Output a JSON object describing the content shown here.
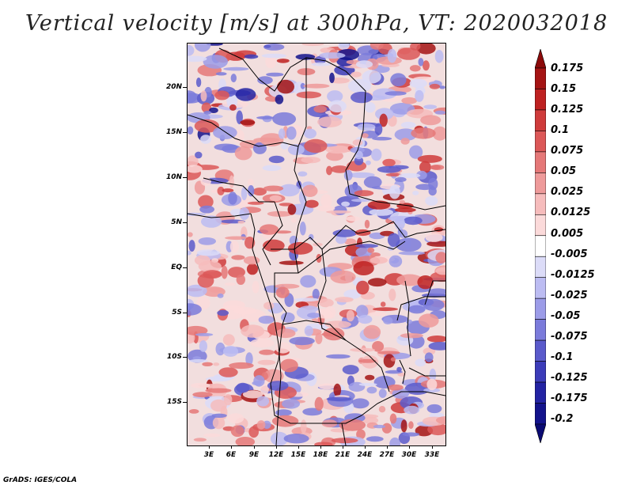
{
  "title": "Vertical velocity [m/s] at 300hPa, VT: 2020032018",
  "footer": "GrADS: IGES/COLA",
  "y_axis_labels": [
    "20N",
    "15N",
    "10N",
    "5N",
    "EQ",
    "5S",
    "10S",
    "15S"
  ],
  "x_axis_labels": [
    "3E",
    "6E",
    "9E",
    "12E",
    "15E",
    "18E",
    "21E",
    "24E",
    "27E",
    "30E",
    "33E"
  ],
  "colorbar": {
    "labels": [
      "0.175",
      "0.15",
      "0.125",
      "0.1",
      "0.075",
      "0.05",
      "0.025",
      "0.0125",
      "0.005",
      "-0.005",
      "-0.0125",
      "-0.025",
      "-0.05",
      "-0.075",
      "-0.1",
      "-0.125",
      "-0.175",
      "-0.2"
    ],
    "colors": [
      "#8c0a0a",
      "#a51414",
      "#be2121",
      "#cf3b3b",
      "#dc5858",
      "#e57878",
      "#ee9a9a",
      "#f6bcbc",
      "#fbdada",
      "#ffffff",
      "#dcdcf8",
      "#bcbcf2",
      "#9c9ce8",
      "#7b7bdb",
      "#5a5acb",
      "#3c3cb9",
      "#2323a3",
      "#13138c",
      "#0a0a73"
    ]
  }
}
